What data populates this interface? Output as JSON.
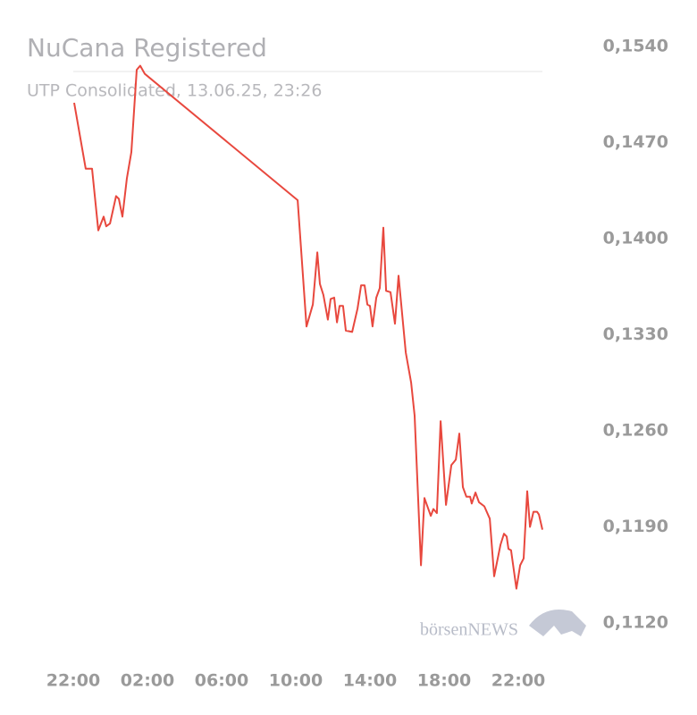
{
  "chart_data": {
    "type": "line",
    "title": "NuCana Registered",
    "subtitle": "UTP Consolidated, 13.06.25, 23:26",
    "watermark": "börsenNEWS",
    "xlim": [
      0,
      25.3
    ],
    "xticks": [
      {
        "value": 0,
        "label": "22:00"
      },
      {
        "value": 4,
        "label": "02:00"
      },
      {
        "value": 8,
        "label": "06:00"
      },
      {
        "value": 12,
        "label": "10:00"
      },
      {
        "value": 16,
        "label": "14:00"
      },
      {
        "value": 20,
        "label": "18:00"
      },
      {
        "value": 24,
        "label": "22:00"
      }
    ],
    "ylim": [
      0.112,
      0.154
    ],
    "yticks": [
      {
        "value": 0.154,
        "label": "0,1540"
      },
      {
        "value": 0.147,
        "label": "0,1470"
      },
      {
        "value": 0.14,
        "label": "0,1400"
      },
      {
        "value": 0.133,
        "label": "0,1330"
      },
      {
        "value": 0.126,
        "label": "0,1260"
      },
      {
        "value": 0.119,
        "label": "0,1190"
      },
      {
        "value": 0.112,
        "label": "0,1120"
      }
    ],
    "series": [
      {
        "color": "#e8483e",
        "x": [
          0.05,
          0.67,
          1.01,
          1.35,
          1.64,
          1.78,
          1.98,
          2.31,
          2.46,
          2.65,
          2.89,
          3.13,
          3.42,
          3.61,
          3.86,
          12.1,
          12.58,
          12.92,
          13.16,
          13.3,
          13.49,
          13.73,
          13.88,
          14.07,
          14.22,
          14.36,
          14.55,
          14.7,
          15.04,
          15.33,
          15.52,
          15.71,
          15.86,
          16.0,
          16.14,
          16.34,
          16.53,
          16.72,
          16.87,
          17.11,
          17.35,
          17.54,
          17.93,
          18.22,
          18.41,
          18.75,
          18.94,
          19.28,
          19.42,
          19.61,
          19.81,
          20.1,
          20.39,
          20.63,
          20.82,
          21.01,
          21.2,
          21.4,
          21.49,
          21.69,
          21.88,
          22.17,
          22.46,
          22.7,
          23.04,
          23.23,
          23.37,
          23.47,
          23.61,
          23.9,
          24.1,
          24.29,
          24.48,
          24.63,
          24.82,
          25.01,
          25.11,
          25.3
        ],
        "values": [
          0.1499,
          0.1451,
          0.1451,
          0.1406,
          0.1416,
          0.1409,
          0.1411,
          0.1431,
          0.1429,
          0.1416,
          0.1444,
          0.1463,
          0.1523,
          0.1526,
          0.152,
          0.1428,
          0.1336,
          0.1352,
          0.139,
          0.1367,
          0.1359,
          0.1341,
          0.1356,
          0.1357,
          0.1339,
          0.1351,
          0.1351,
          0.1333,
          0.1332,
          0.1349,
          0.1366,
          0.1366,
          0.1352,
          0.1351,
          0.1336,
          0.1357,
          0.1364,
          0.1408,
          0.1362,
          0.1361,
          0.1338,
          0.1373,
          0.1317,
          0.1295,
          0.1271,
          0.1162,
          0.1211,
          0.1198,
          0.1203,
          0.12,
          0.1267,
          0.1206,
          0.1235,
          0.1239,
          0.1258,
          0.1219,
          0.1212,
          0.1212,
          0.1207,
          0.1215,
          0.1208,
          0.1205,
          0.1196,
          0.1154,
          0.1177,
          0.1185,
          0.1183,
          0.1174,
          0.1173,
          0.1145,
          0.1162,
          0.1167,
          0.1216,
          0.119,
          0.1201,
          0.1201,
          0.1199,
          0.1188
        ]
      }
    ]
  }
}
